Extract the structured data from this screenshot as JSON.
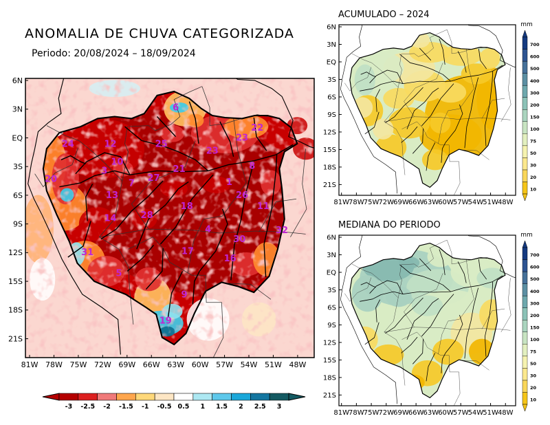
{
  "main_map": {
    "title": "ANOMALIA DE CHUVA CATEGORIZADA",
    "subtitle": "Periodo: 20/08/2024 – 18/09/2024",
    "lat_labels": [
      "6N",
      "3N",
      "EQ",
      "3S",
      "6S",
      "9S",
      "12S",
      "15S",
      "18S",
      "21S"
    ],
    "lon_labels": [
      "81W",
      "78W",
      "75W",
      "72W",
      "69W",
      "66W",
      "63W",
      "60W",
      "57W",
      "54W",
      "51W",
      "48W"
    ],
    "basin_numbers": [
      {
        "n": "6",
        "lon": -63.8,
        "lat": 2.8
      },
      {
        "n": "24",
        "lon": -76.5,
        "lat": -0.8
      },
      {
        "n": "12",
        "lon": -71.5,
        "lat": -0.8
      },
      {
        "n": "25",
        "lon": -65.5,
        "lat": -0.8
      },
      {
        "n": "23",
        "lon": -59.5,
        "lat": -1.5
      },
      {
        "n": "23",
        "lon": -56.0,
        "lat": -0.2
      },
      {
        "n": "22",
        "lon": -54.2,
        "lat": 0.8
      },
      {
        "n": "10",
        "lon": -70.7,
        "lat": -2.6
      },
      {
        "n": "3",
        "lon": -72.2,
        "lat": -3.5
      },
      {
        "n": "7",
        "lon": -69.0,
        "lat": -4.7
      },
      {
        "n": "27",
        "lon": -66.4,
        "lat": -4.2
      },
      {
        "n": "21",
        "lon": -63.4,
        "lat": -3.3
      },
      {
        "n": "8",
        "lon": -54.8,
        "lat": -3.0
      },
      {
        "n": "20",
        "lon": -78.5,
        "lat": -4.3
      },
      {
        "n": "13",
        "lon": -71.3,
        "lat": -5.9
      },
      {
        "n": "1",
        "lon": -57.5,
        "lat": -4.6
      },
      {
        "n": "26",
        "lon": -56.0,
        "lat": -5.9
      },
      {
        "n": "11",
        "lon": -53.5,
        "lat": -7.0
      },
      {
        "n": "18",
        "lon": -62.5,
        "lat": -7.0
      },
      {
        "n": "14",
        "lon": -71.5,
        "lat": -8.2
      },
      {
        "n": "28",
        "lon": -67.2,
        "lat": -7.9
      },
      {
        "n": "4",
        "lon": -60.0,
        "lat": -9.3
      },
      {
        "n": "32",
        "lon": -51.3,
        "lat": -9.4
      },
      {
        "n": "30",
        "lon": -56.3,
        "lat": -10.3
      },
      {
        "n": "31",
        "lon": -74.2,
        "lat": -11.6
      },
      {
        "n": "16",
        "lon": -57.4,
        "lat": -12.2
      },
      {
        "n": "17",
        "lon": -62.4,
        "lat": -11.5
      },
      {
        "n": "5",
        "lon": -70.5,
        "lat": -13.7
      },
      {
        "n": "9",
        "lon": -62.8,
        "lat": -15.8
      },
      {
        "n": "19",
        "lon": -65.0,
        "lat": -18.4
      }
    ]
  },
  "legend": {
    "labels": [
      "-3",
      "-2.5",
      "-2",
      "-1.5",
      "-1",
      "-0.5",
      "0.5",
      "1",
      "1.5",
      "2",
      "2.5",
      "3"
    ],
    "colors": [
      "#b40000",
      "#dc2020",
      "#f07a7a",
      "#ffa64d",
      "#ffd87a",
      "#fde6c4",
      "#ffffff",
      "#ade8f2",
      "#5ec8eb",
      "#1aa7d9",
      "#1476a0",
      "#145a62"
    ]
  },
  "accum_map": {
    "title": "ACUMULADO – 2024",
    "lat_labels": [
      "6N",
      "3N",
      "EQ",
      "3S",
      "6S",
      "9S",
      "12S",
      "15S",
      "18S",
      "21S"
    ],
    "lon_labels": [
      "81W",
      "78W",
      "75W",
      "72W",
      "69W",
      "66W",
      "63W",
      "60W",
      "57W",
      "54W",
      "51W",
      "48W"
    ]
  },
  "median_map": {
    "title": "MEDIANA DO PERIODO",
    "lat_labels": [
      "6N",
      "3N",
      "EQ",
      "3S",
      "6S",
      "9S",
      "12S",
      "15S",
      "18S",
      "21S"
    ],
    "lon_labels": [
      "81W",
      "78W",
      "75W",
      "72W",
      "69W",
      "66W",
      "63W",
      "60W",
      "57W",
      "54W",
      "51W",
      "48W"
    ]
  },
  "colorbar": {
    "unit": "mm",
    "labels": [
      "10",
      "20",
      "30",
      "50",
      "75",
      "100",
      "150",
      "200",
      "300",
      "400",
      "500",
      "600",
      "700"
    ],
    "colors": [
      "#f5c518",
      "#fad75a",
      "#fce98e",
      "#f6f3b0",
      "#e3f0c0",
      "#c8e4c2",
      "#abd5bf",
      "#8cc2b7",
      "#6ea8ad",
      "#5c8fa3",
      "#46719a",
      "#2e5492",
      "#153a80"
    ]
  }
}
